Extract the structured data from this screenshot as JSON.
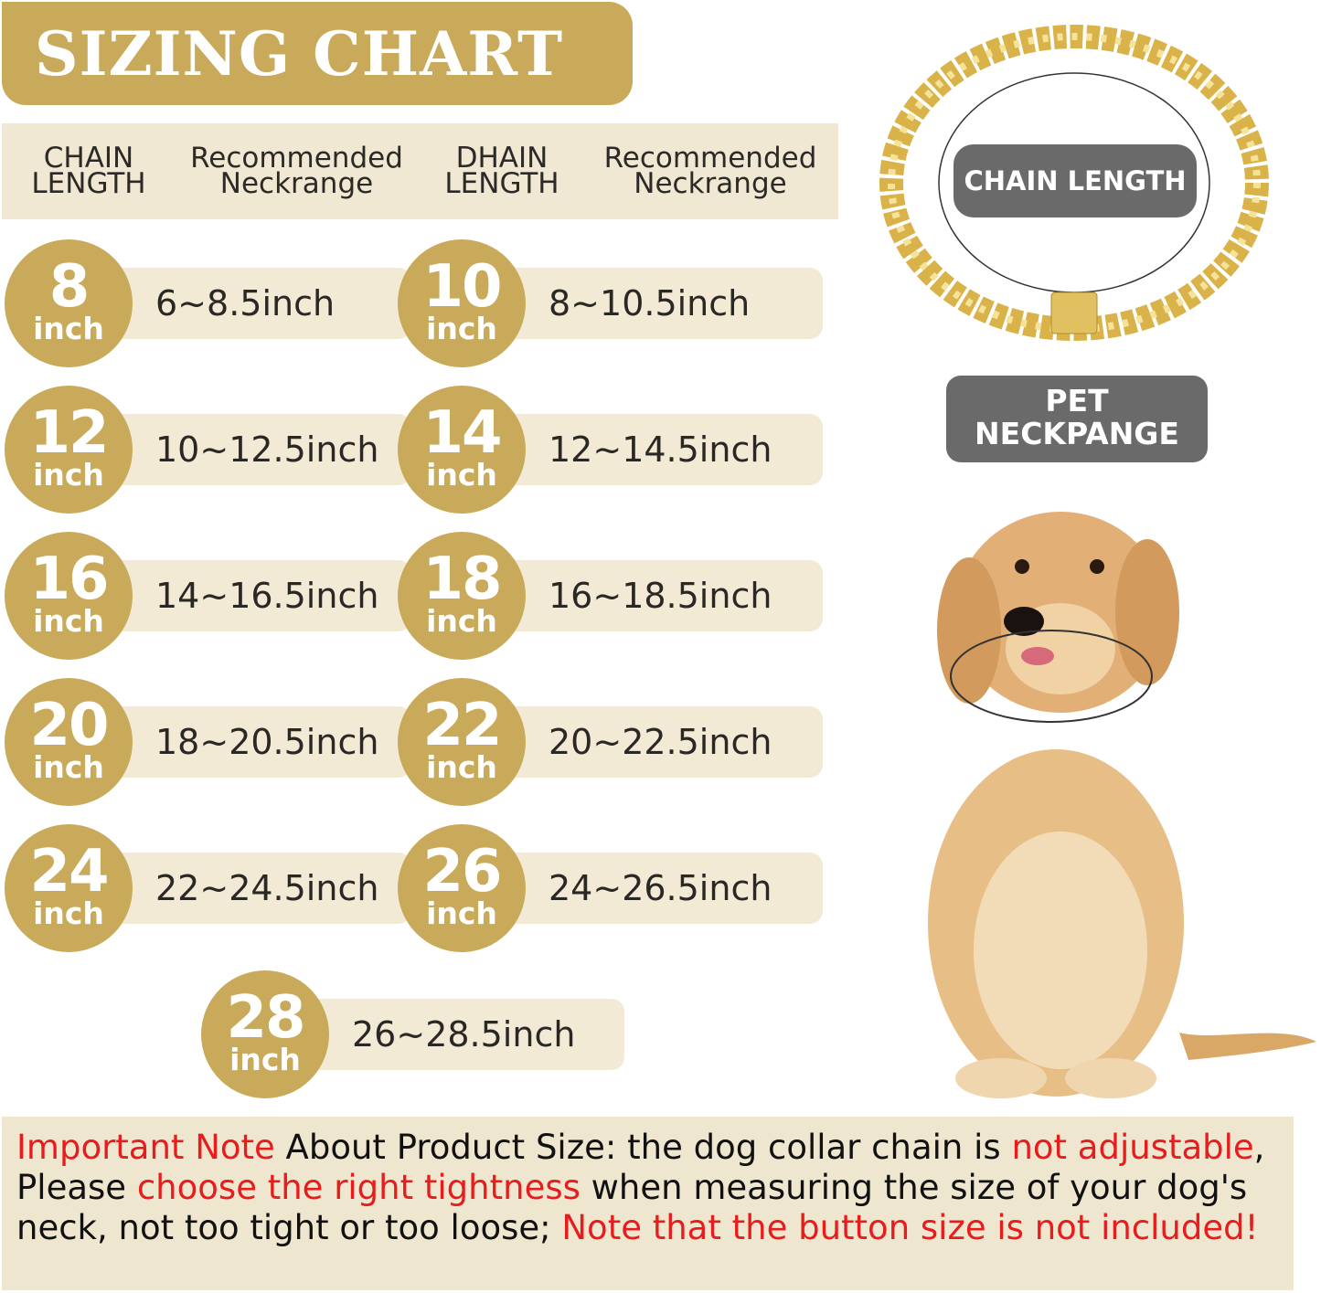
{
  "title": "SIZING CHART",
  "header": {
    "col1": [
      "CHAIN",
      "LENGTH"
    ],
    "col2": [
      "Recommended",
      "Neckrange"
    ],
    "col3": [
      "DHAIN",
      "LENGTH"
    ],
    "col4": [
      "Recommended",
      "Neckrange"
    ]
  },
  "sizes": [
    {
      "chain": "8",
      "unit": "inch",
      "range": "6~8.5inch"
    },
    {
      "chain": "10",
      "unit": "inch",
      "range": "8~10.5inch"
    },
    {
      "chain": "12",
      "unit": "inch",
      "range": "10~12.5inch"
    },
    {
      "chain": "14",
      "unit": "inch",
      "range": "12~14.5inch"
    },
    {
      "chain": "16",
      "unit": "inch",
      "range": "14~16.5inch"
    },
    {
      "chain": "18",
      "unit": "inch",
      "range": "16~18.5inch"
    },
    {
      "chain": "20",
      "unit": "inch",
      "range": "18~20.5inch"
    },
    {
      "chain": "22",
      "unit": "inch",
      "range": "20~22.5inch"
    },
    {
      "chain": "24",
      "unit": "inch",
      "range": "22~24.5inch"
    },
    {
      "chain": "26",
      "unit": "inch",
      "range": "24~26.5inch"
    },
    {
      "chain": "28",
      "unit": "inch",
      "range": "26~28.5inch"
    }
  ],
  "labels": {
    "chain_length": "CHAIN LENGTH",
    "pet_neckrange": [
      "PET",
      "NECKPANGE"
    ]
  },
  "note": [
    {
      "text": "Important Note",
      "highlight": true
    },
    {
      "text": " About Product Size: the dog collar chain is ",
      "highlight": false
    },
    {
      "text": "not adjustable",
      "highlight": true
    },
    {
      "text": ", Please ",
      "highlight": false
    },
    {
      "text": "choose the right tightness",
      "highlight": true
    },
    {
      "text": " when measuring the size of your dog's neck, not too tight or too loose; ",
      "highlight": false
    },
    {
      "text": "Note that the button size is not included!",
      "highlight": true
    }
  ],
  "colors": {
    "gold": "#c9a95a",
    "beige": "#f1e8d3",
    "label_gray": "#6a6a6a",
    "highlight_red": "#e81c1c"
  }
}
